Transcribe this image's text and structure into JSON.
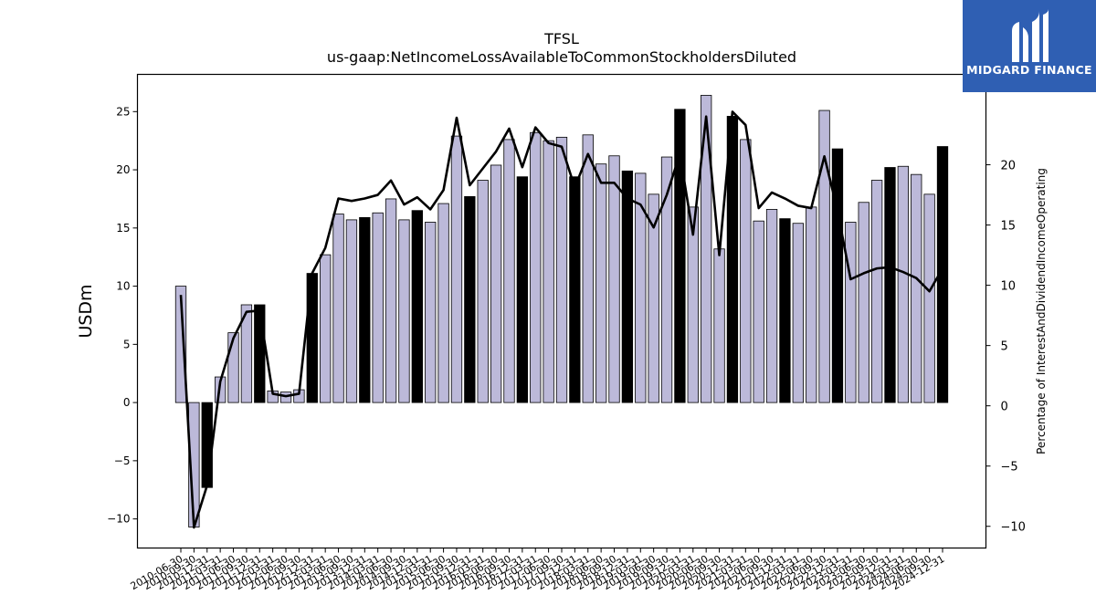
{
  "chart_data": {
    "type": "bar",
    "title": "TFSL",
    "subtitle": "us-gaap:NetIncomeLossAvailableToCommonStockholdersDiluted",
    "ylabel": "USDm",
    "y2label": "Percentage of InterestAndDividendIncomeOperating",
    "ylim": [
      -12.5,
      28.2
    ],
    "y2lim": [
      -11.8,
      27.5
    ],
    "yticks": [
      -10,
      -5,
      0,
      5,
      10,
      15,
      20,
      25
    ],
    "y2ticks": [
      -10,
      -5,
      0,
      5,
      10,
      15,
      20
    ],
    "x": [
      "2010-06-30",
      "2010-09-30",
      "2010-12-31",
      "2011-03-31",
      "2011-06-30",
      "2011-09-30",
      "2011-12-31",
      "2012-03-31",
      "2012-06-30",
      "2012-09-30",
      "2012-12-31",
      "2013-03-31",
      "2013-06-30",
      "2013-09-30",
      "2013-12-31",
      "2014-03-31",
      "2014-06-30",
      "2014-09-30",
      "2014-12-31",
      "2015-03-31",
      "2015-06-30",
      "2015-09-30",
      "2015-12-31",
      "2016-03-31",
      "2016-06-30",
      "2016-09-30",
      "2016-12-31",
      "2017-03-31",
      "2017-06-30",
      "2017-09-30",
      "2017-12-31",
      "2018-03-31",
      "2018-06-30",
      "2018-09-30",
      "2018-12-31",
      "2019-03-31",
      "2019-06-30",
      "2019-09-30",
      "2019-12-31",
      "2020-03-31",
      "2020-06-30",
      "2020-09-30",
      "2020-12-31",
      "2021-03-31",
      "2021-06-30",
      "2021-09-30",
      "2021-12-31",
      "2022-03-31",
      "2022-06-30",
      "2022-09-30",
      "2022-12-31",
      "2023-03-31",
      "2023-06-30",
      "2023-09-30",
      "2023-12-31",
      "2024-03-31",
      "2024-06-30",
      "2024-09-30",
      "2024-12-31"
    ],
    "series": [
      {
        "kind": "bar",
        "values": [
          10.0,
          -10.7,
          -7.3,
          2.2,
          6.0,
          8.4,
          8.4,
          1.0,
          0.9,
          1.1,
          11.1,
          12.7,
          16.2,
          15.7,
          15.9,
          16.3,
          17.5,
          15.7,
          16.5,
          15.5,
          17.1,
          22.9,
          17.7,
          19.1,
          20.4,
          22.6,
          19.4,
          23.2,
          22.5,
          22.8,
          19.4,
          23.0,
          20.5,
          21.2,
          19.9,
          19.7,
          17.9,
          21.1,
          25.2,
          16.8,
          26.4,
          13.2,
          24.6,
          22.6,
          15.6,
          16.6,
          15.8,
          15.4,
          16.8,
          25.1,
          21.8,
          15.5,
          17.2,
          19.1,
          20.2,
          20.3,
          19.6,
          17.9,
          22.0
        ],
        "highlight": [
          false,
          false,
          true,
          false,
          false,
          false,
          true,
          false,
          false,
          false,
          true,
          false,
          false,
          false,
          true,
          false,
          false,
          false,
          true,
          false,
          false,
          false,
          true,
          false,
          false,
          false,
          true,
          false,
          false,
          false,
          true,
          false,
          false,
          false,
          true,
          false,
          false,
          false,
          true,
          false,
          false,
          false,
          true,
          false,
          false,
          false,
          true,
          false,
          false,
          false,
          true,
          false,
          false,
          false,
          true,
          false,
          false,
          false,
          true
        ],
        "color": "#bcb9d9",
        "highlight_color": "#000000"
      },
      {
        "kind": "line",
        "axis": "right",
        "values": [
          9.2,
          -10.1,
          -6.6,
          2.0,
          5.6,
          7.8,
          7.9,
          1.0,
          0.8,
          1.0,
          11.0,
          13.1,
          17.2,
          17.0,
          17.2,
          17.5,
          18.7,
          16.7,
          17.3,
          16.3,
          17.9,
          23.9,
          18.3,
          19.7,
          21.1,
          23.0,
          19.8,
          23.1,
          21.8,
          21.5,
          18.1,
          20.9,
          18.5,
          18.5,
          17.2,
          16.7,
          14.8,
          17.5,
          20.9,
          14.2,
          24.0,
          12.5,
          24.4,
          23.3,
          16.4,
          17.7,
          17.2,
          16.6,
          16.4,
          20.7,
          16.2,
          10.5,
          11.0,
          11.4,
          11.5,
          11.1,
          10.6,
          9.5,
          11.4
        ],
        "color": "#000000"
      }
    ]
  },
  "logo": {
    "name": "MIDGARD FINANCE"
  }
}
